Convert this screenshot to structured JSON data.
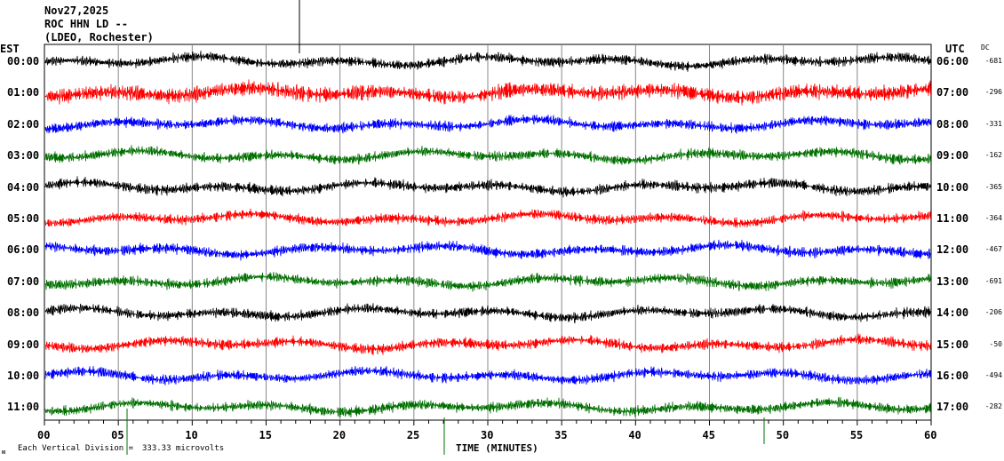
{
  "header": {
    "date": "Nov27,2025",
    "station": "ROC HHN LD --",
    "network": "(LDEO, Rochester)"
  },
  "chart_data": {
    "type": "line",
    "xlabel": "TIME (MINUTES)",
    "xlim": [
      0,
      60
    ],
    "x_ticks": [
      "00",
      "05",
      "10",
      "15",
      "20",
      "25",
      "30",
      "35",
      "40",
      "45",
      "50",
      "55",
      "60"
    ],
    "left_axis_title": "EST",
    "right_axis_title": "UTC",
    "dc_title": "DC",
    "grid": true,
    "colors": [
      "#000000",
      "#ff0000",
      "#0000ff",
      "#007000"
    ],
    "rows": [
      {
        "est": "00:00",
        "utc": "06:00",
        "dc": "-681"
      },
      {
        "est": "01:00",
        "utc": "07:00",
        "dc": "-296"
      },
      {
        "est": "02:00",
        "utc": "08:00",
        "dc": "-331"
      },
      {
        "est": "03:00",
        "utc": "09:00",
        "dc": "-162"
      },
      {
        "est": "04:00",
        "utc": "10:00",
        "dc": "-365"
      },
      {
        "est": "05:00",
        "utc": "11:00",
        "dc": "-364"
      },
      {
        "est": "06:00",
        "utc": "12:00",
        "dc": "-467"
      },
      {
        "est": "07:00",
        "utc": "13:00",
        "dc": "-691"
      },
      {
        "est": "08:00",
        "utc": "14:00",
        "dc": "-206"
      },
      {
        "est": "09:00",
        "utc": "15:00",
        "dc": "-50"
      },
      {
        "est": "10:00",
        "utc": "16:00",
        "dc": "-494"
      },
      {
        "est": "11:00",
        "utc": "17:00",
        "dc": "-282"
      }
    ]
  },
  "footer": {
    "symbol": "ᴍ",
    "scale_label": "Each Vertical Division =",
    "scale_value": "333.33 microvolts"
  }
}
